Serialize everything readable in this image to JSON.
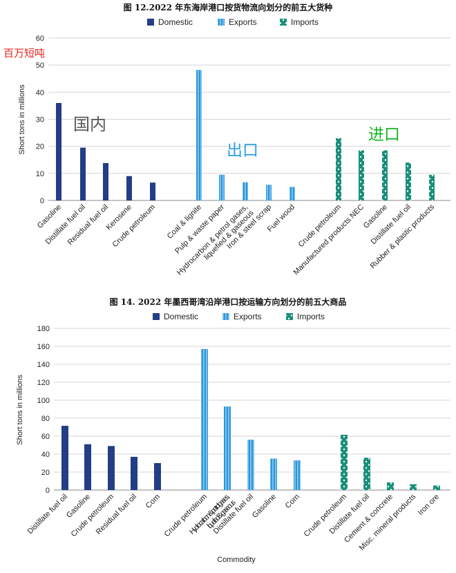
{
  "colors": {
    "domestic": "#233d86",
    "exports": "#2b97dc",
    "imports": "#1a8f7a",
    "grid": "#d4d4d4",
    "axis": "#8a8a8a"
  },
  "chart_data": [
    {
      "type": "bar",
      "title": "图 12.2022 年东海岸港口按货物流向划分的前五大货种",
      "ylabel": "Short tons in millions",
      "xlabel": "",
      "ylim": [
        0,
        60
      ],
      "yticks": [
        0,
        10,
        20,
        30,
        40,
        50,
        60
      ],
      "grid": true,
      "legend": [
        "Domestic",
        "Exports",
        "Imports"
      ],
      "legend_position": "top-center",
      "annotations": {
        "unit": "百万短吨",
        "domestic": "国内",
        "exports": "出口",
        "imports": "进口"
      },
      "groups": [
        {
          "name": "Domestic",
          "categories": [
            "Gasoline",
            "Distillate fuel oil",
            "Residual fuel oil",
            "Kerosene",
            "Crude petroleum"
          ],
          "values": [
            36,
            19.5,
            13.8,
            9,
            6.6
          ]
        },
        {
          "name": "Exports",
          "categories": [
            "Coal & lignite",
            "Pulp & waste paper",
            "Hydrocarbon & petrol gases, liquefied & gaseous",
            "Iron & steel scrap",
            "Fuel wood"
          ],
          "values": [
            48.2,
            9.5,
            6.7,
            5.8,
            5
          ]
        },
        {
          "name": "Imports",
          "categories": [
            "Crude petroleum",
            "Manufactured products NEC",
            "Gasoline",
            "Distillate fuel oil",
            "Rubber & plastic products"
          ],
          "values": [
            23,
            18.5,
            18.5,
            14,
            9.5
          ]
        }
      ]
    },
    {
      "type": "bar",
      "title": "图 14. 2022 年墨西哥湾沿岸港口按运输方向划分的前五大商品",
      "ylabel": "Short tons in millions",
      "xlabel": "Commodity",
      "ylim": [
        0,
        180
      ],
      "yticks": [
        0,
        20,
        40,
        60,
        80,
        100,
        120,
        140,
        160,
        180
      ],
      "grid": true,
      "legend": [
        "Domestic",
        "Exports",
        "Imports"
      ],
      "legend_position": "top-center",
      "groups": [
        {
          "name": "Domestic",
          "categories": [
            "Distillate fuel oil",
            "Gasoline",
            "Crude petroleum",
            "Residual fuel oil",
            "Corn"
          ],
          "values": [
            71.5,
            51,
            49,
            37,
            30
          ]
        },
        {
          "name": "Exports",
          "categories": [
            "Crude petroleum",
            "Hydrocarbon & petrol gases, liquefied & gaseous",
            "Distillate fuel oil",
            "Gasoline",
            "Corn"
          ],
          "values": [
            157,
            93,
            56,
            35,
            33
          ]
        },
        {
          "name": "Imports",
          "categories": [
            "Crude petroleum",
            "Distillate fuel oil",
            "Cement & concrete",
            "Misc. mineral products",
            "Iron ore"
          ],
          "values": [
            61.5,
            36,
            8.5,
            6.5,
            5
          ]
        }
      ]
    }
  ]
}
